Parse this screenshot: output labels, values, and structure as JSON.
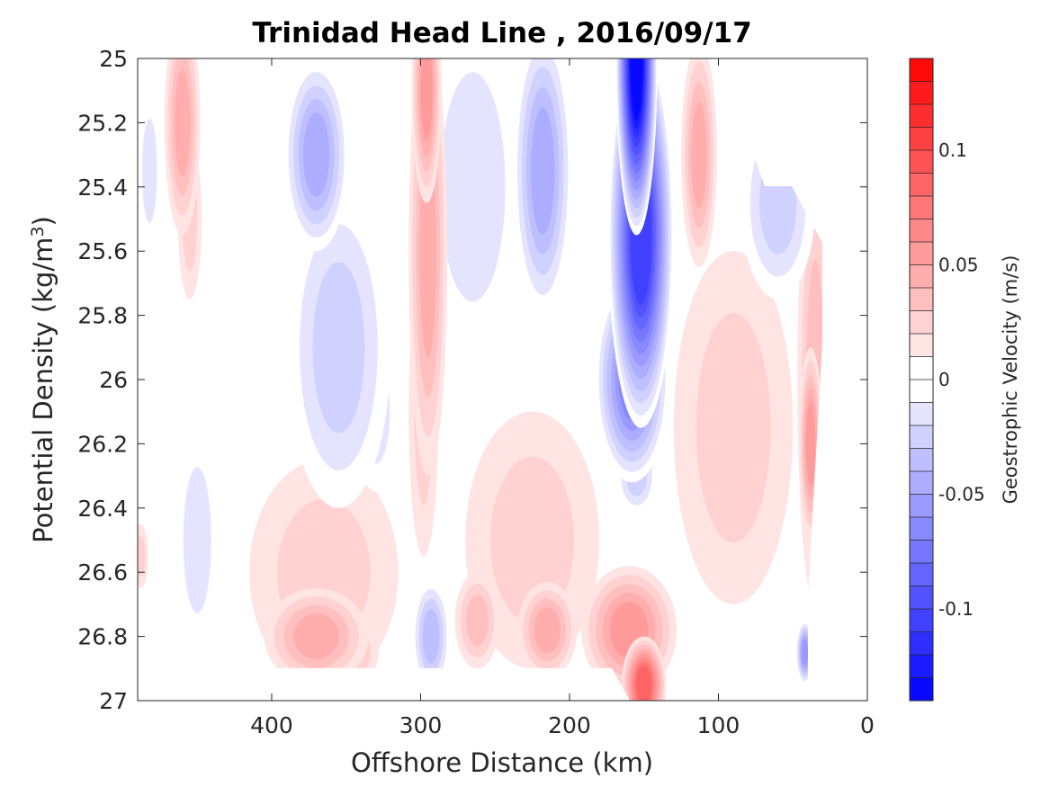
{
  "chart_data": {
    "type": "heatmap",
    "title": "Trinidad Head Line , 2016/09/17",
    "xlabel": "Offshore Distance (km)",
    "ylabel_main": "Potential Density (kg/m",
    "ylabel_sup": "3",
    "ylabel_close": ")",
    "colorbar_label": "Geostrophic Velocity (m/s)",
    "xlim": [
      490,
      0
    ],
    "x_reversed": true,
    "ylim": [
      25,
      27
    ],
    "y_reversed": true,
    "clim": [
      -0.14,
      0.14
    ],
    "colormap": "blue-white-red",
    "color_levels": 28,
    "xticks": [
      400,
      300,
      200,
      100,
      0
    ],
    "xtick_labels": [
      "400",
      "300",
      "200",
      "100",
      "0"
    ],
    "yticks": [
      25,
      25.2,
      25.4,
      25.6,
      25.8,
      26,
      26.2,
      26.4,
      26.6,
      26.8,
      27
    ],
    "ytick_labels": [
      "25",
      "25.2",
      "25.4",
      "25.6",
      "25.8",
      "26",
      "26.2",
      "26.4",
      "26.6",
      "26.8",
      "27"
    ],
    "cticks": [
      0.1,
      0.05,
      0,
      -0.05,
      -0.1
    ],
    "ctick_labels": [
      "0.1",
      "0.05",
      "0",
      "-0.05",
      "-0.1"
    ],
    "features": [
      {
        "x": 155,
        "y": 25.0,
        "rx": 14,
        "ry": 0.55,
        "value": -0.14
      },
      {
        "x": 152,
        "y": 25.55,
        "rx": 22,
        "ry": 0.6,
        "value": -0.11
      },
      {
        "x": 158,
        "y": 26.0,
        "rx": 25,
        "ry": 0.32,
        "value": -0.07
      },
      {
        "x": 155,
        "y": 26.3,
        "rx": 14,
        "ry": 0.12,
        "value": -0.03
      },
      {
        "x": 218,
        "y": 25.35,
        "rx": 20,
        "ry": 0.45,
        "value": -0.05
      },
      {
        "x": 370,
        "y": 25.3,
        "rx": 22,
        "ry": 0.3,
        "value": -0.05
      },
      {
        "x": 355,
        "y": 25.9,
        "rx": 35,
        "ry": 0.5,
        "value": -0.03
      },
      {
        "x": 330,
        "y": 26.1,
        "rx": 15,
        "ry": 0.25,
        "value": -0.02
      },
      {
        "x": 265,
        "y": 25.4,
        "rx": 35,
        "ry": 0.55,
        "value": -0.02
      },
      {
        "x": 60,
        "y": 25.45,
        "rx": 25,
        "ry": 0.3,
        "value": -0.03
      },
      {
        "x": 482,
        "y": 25.35,
        "rx": 8,
        "ry": 0.25,
        "value": -0.02
      },
      {
        "x": 450,
        "y": 26.5,
        "rx": 15,
        "ry": 0.35,
        "value": -0.015
      },
      {
        "x": 293,
        "y": 26.8,
        "rx": 13,
        "ry": 0.18,
        "value": -0.04
      },
      {
        "x": 42,
        "y": 26.85,
        "rx": 6,
        "ry": 0.1,
        "value": -0.06
      },
      {
        "x": 78,
        "y": 26.98,
        "rx": 16,
        "ry": 0.05,
        "value": -0.01
      },
      {
        "x": 296,
        "y": 25.1,
        "rx": 10,
        "ry": 0.35,
        "value": 0.05
      },
      {
        "x": 295,
        "y": 25.6,
        "rx": 13,
        "ry": 0.7,
        "value": 0.035
      },
      {
        "x": 298,
        "y": 26.1,
        "rx": 10,
        "ry": 0.45,
        "value": 0.02
      },
      {
        "x": 460,
        "y": 25.2,
        "rx": 12,
        "ry": 0.35,
        "value": 0.04
      },
      {
        "x": 455,
        "y": 25.5,
        "rx": 8,
        "ry": 0.25,
        "value": 0.015
      },
      {
        "x": 113,
        "y": 25.3,
        "rx": 12,
        "ry": 0.35,
        "value": 0.035
      },
      {
        "x": 90,
        "y": 26.15,
        "rx": 40,
        "ry": 0.55,
        "value": 0.018
      },
      {
        "x": 38,
        "y": 26.2,
        "rx": 8,
        "ry": 0.3,
        "value": 0.05
      },
      {
        "x": 35,
        "y": 26.0,
        "rx": 12,
        "ry": 0.7,
        "value": 0.025
      },
      {
        "x": 150,
        "y": 26.95,
        "rx": 15,
        "ry": 0.15,
        "value": 0.08
      },
      {
        "x": 160,
        "y": 26.78,
        "rx": 32,
        "ry": 0.2,
        "value": 0.045
      },
      {
        "x": 215,
        "y": 26.78,
        "rx": 20,
        "ry": 0.15,
        "value": 0.04
      },
      {
        "x": 225,
        "y": 26.5,
        "rx": 45,
        "ry": 0.4,
        "value": 0.02
      },
      {
        "x": 370,
        "y": 26.8,
        "rx": 35,
        "ry": 0.15,
        "value": 0.04
      },
      {
        "x": 365,
        "y": 26.6,
        "rx": 50,
        "ry": 0.35,
        "value": 0.018
      },
      {
        "x": 350,
        "y": 26.85,
        "rx": 22,
        "ry": 0.1,
        "value": 0.025
      },
      {
        "x": 262,
        "y": 26.75,
        "rx": 15,
        "ry": 0.15,
        "value": 0.03
      },
      {
        "x": 488,
        "y": 26.55,
        "rx": 5,
        "ry": 0.1,
        "value": 0.02
      }
    ]
  }
}
